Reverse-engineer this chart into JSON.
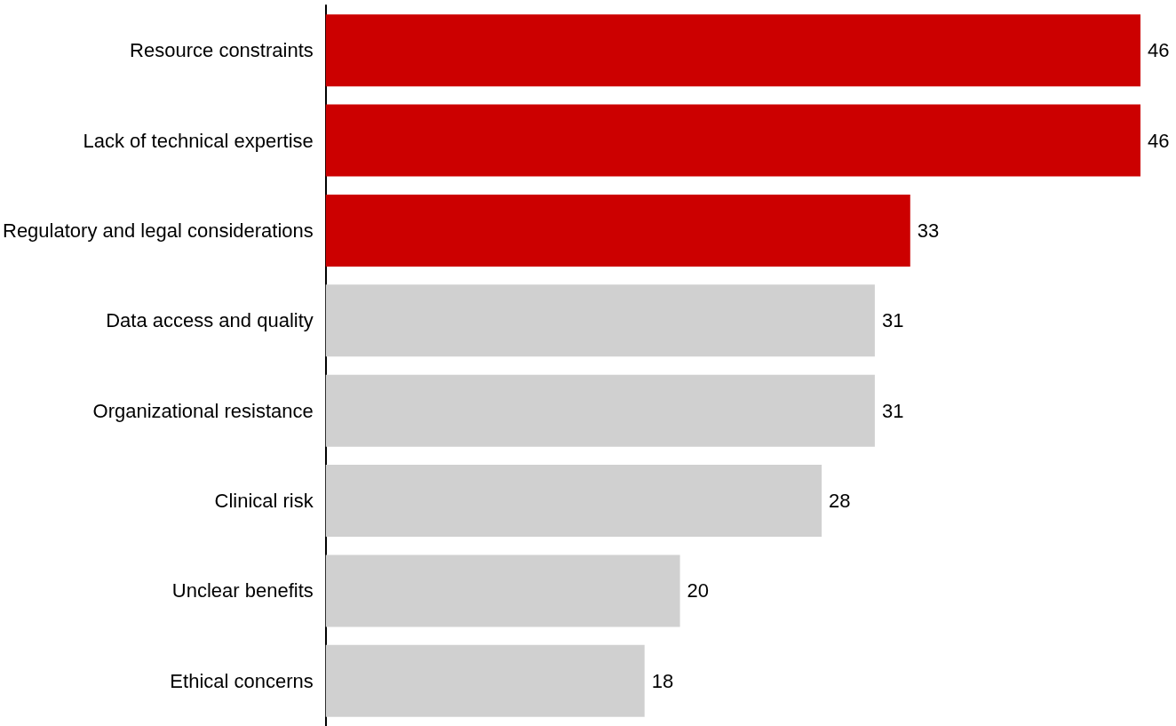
{
  "chart_data": {
    "type": "bar",
    "orientation": "horizontal",
    "categories": [
      "Resource constraints",
      "Lack of technical expertise",
      "Regulatory and legal considerations",
      "Data access and quality",
      "Organizational resistance",
      "Clinical risk",
      "Unclear benefits",
      "Ethical concerns"
    ],
    "values": [
      46,
      46,
      33,
      31,
      31,
      28,
      20,
      18
    ],
    "colors": [
      "#cc0000",
      "#cc0000",
      "#cc0000",
      "#d0d0d0",
      "#d0d0d0",
      "#d0d0d0",
      "#d0d0d0",
      "#d0d0d0"
    ],
    "data_labels": true
  }
}
